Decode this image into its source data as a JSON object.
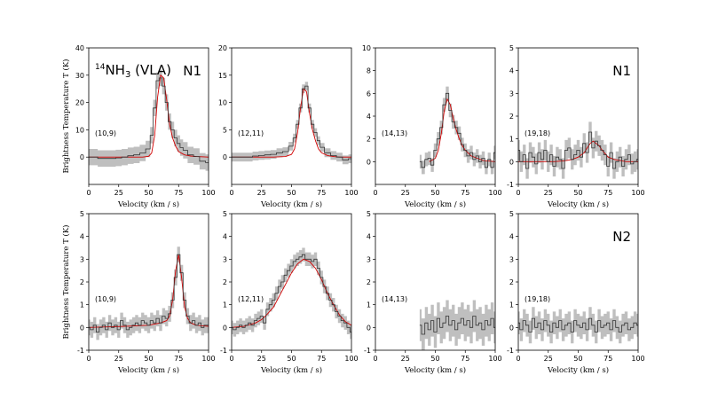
{
  "figure": {
    "title": "NH3 (VLA)",
    "title_prefix": "14",
    "title_species": "NH",
    "title_sub": "3",
    "title_suffix": " (VLA)"
  },
  "chart_data": [
    {
      "type": "line",
      "row": "N1",
      "panel": "(10,9)",
      "region_label": "N1",
      "title_species_label": true,
      "xlabel": "Velocity (km / s)",
      "ylabel": "Brightness Temperature T (K)",
      "xlim": [
        0,
        100
      ],
      "ylim": [
        -10,
        40
      ],
      "xticks": [
        0,
        25,
        50,
        75,
        100
      ],
      "yticks": [
        0,
        10,
        20,
        30,
        40
      ],
      "observed": {
        "x": [
          0,
          5,
          10,
          15,
          20,
          25,
          30,
          35,
          40,
          45,
          50,
          52.5,
          55,
          57.5,
          60,
          62.5,
          65,
          67.5,
          70,
          72.5,
          75,
          77.5,
          80,
          85,
          90,
          95,
          100
        ],
        "y": [
          0,
          0,
          -0.5,
          -0.5,
          -0.5,
          -0.3,
          0,
          0.5,
          0.8,
          1.5,
          3,
          8,
          18,
          28,
          29,
          26,
          20,
          13,
          10,
          7,
          5,
          3.5,
          2.5,
          0.8,
          0.2,
          -1.5,
          -2
        ],
        "err": 3
      },
      "model": {
        "x": [
          0,
          30,
          45,
          50,
          52.5,
          55,
          57.5,
          60,
          62.5,
          65,
          67.5,
          70,
          72.5,
          75,
          80,
          85,
          90,
          100
        ],
        "y": [
          0,
          0,
          0,
          0.3,
          1.5,
          8,
          22,
          30,
          29,
          21,
          12,
          7,
          4,
          2,
          0.8,
          0.4,
          0.2,
          0
        ]
      }
    },
    {
      "type": "line",
      "row": "N1",
      "panel": "(12,11)",
      "xlabel": "Velocity (km / s)",
      "xlim": [
        0,
        100
      ],
      "ylim": [
        -5,
        20
      ],
      "xticks": [
        0,
        25,
        50,
        75,
        100
      ],
      "yticks": [
        0,
        5,
        10,
        15,
        20
      ],
      "observed": {
        "x": [
          0,
          5,
          10,
          15,
          20,
          25,
          30,
          35,
          40,
          45,
          50,
          52.5,
          55,
          57.5,
          60,
          62.5,
          65,
          67.5,
          70,
          72.5,
          75,
          80,
          85,
          90,
          95,
          100
        ],
        "y": [
          0,
          0,
          0,
          0,
          0.2,
          0.3,
          0.4,
          0.5,
          0.8,
          1,
          2,
          3.5,
          6,
          9,
          12.5,
          13,
          9,
          6,
          4.5,
          3,
          1.8,
          0.8,
          0.3,
          0,
          -0.5,
          -0.3
        ],
        "err": 0.8
      },
      "model": {
        "x": [
          0,
          35,
          45,
          50,
          52.5,
          55,
          57.5,
          60,
          62.5,
          65,
          67.5,
          70,
          72.5,
          75,
          80,
          85,
          90,
          100
        ],
        "y": [
          0,
          0,
          0.1,
          0.5,
          1.5,
          4.5,
          9,
          12.5,
          12,
          8,
          5,
          3,
          1.5,
          0.8,
          0.3,
          0.1,
          0,
          0
        ]
      }
    },
    {
      "type": "line",
      "row": "N1",
      "panel": "(14,13)",
      "xlabel": "Velocity (km / s)",
      "xlim": [
        0,
        100
      ],
      "ylim": [
        -2,
        10
      ],
      "xticks": [
        0,
        25,
        50,
        75,
        100
      ],
      "yticks": [
        0,
        2,
        4,
        6,
        8,
        10
      ],
      "observed": {
        "x": [
          37,
          40,
          42.5,
          45,
          47.5,
          50,
          52.5,
          55,
          57.5,
          60,
          62.5,
          65,
          67.5,
          70,
          72.5,
          75,
          77.5,
          80,
          82.5,
          85,
          87.5,
          90,
          92.5,
          95,
          97.5,
          100
        ],
        "y": [
          0,
          -0.5,
          0.2,
          0.3,
          -0.3,
          1,
          2,
          3,
          5,
          6,
          4.5,
          3.5,
          3,
          2.5,
          1.5,
          1,
          0.5,
          0.8,
          0.2,
          0.5,
          0,
          0.3,
          -0.5,
          0.2,
          -0.5,
          0.8
        ],
        "err": 0.6
      },
      "model": {
        "x": [
          45,
          50,
          52.5,
          55,
          57.5,
          60,
          62.5,
          65,
          67.5,
          70,
          72.5,
          75,
          80,
          85,
          90,
          100
        ],
        "y": [
          0,
          0.3,
          1,
          2.5,
          4.5,
          5.5,
          5,
          3.8,
          2.8,
          2,
          1.4,
          1,
          0.5,
          0.3,
          0.1,
          0
        ]
      }
    },
    {
      "type": "line",
      "row": "N1",
      "panel": "(19,18)",
      "region_label": "N1",
      "xlabel": "Velocity (km / s)",
      "xlim": [
        0,
        100
      ],
      "ylim": [
        -1,
        5
      ],
      "xticks": [
        0,
        25,
        50,
        75,
        100
      ],
      "yticks": [
        -1,
        0,
        1,
        2,
        3,
        4,
        5
      ],
      "observed": {
        "x": [
          0,
          2.5,
          5,
          7.5,
          10,
          12.5,
          15,
          17.5,
          20,
          22.5,
          25,
          27.5,
          30,
          32.5,
          35,
          37.5,
          40,
          42.5,
          45,
          47.5,
          50,
          52.5,
          55,
          57.5,
          60,
          62.5,
          65,
          67.5,
          70,
          72.5,
          75,
          77.5,
          80,
          82.5,
          85,
          87.5,
          90,
          92.5,
          95,
          97.5,
          100
        ],
        "y": [
          0.5,
          0,
          0.3,
          -0.3,
          0.4,
          0.2,
          -0.1,
          0.4,
          0.1,
          0.5,
          0,
          0.3,
          -0.2,
          0.2,
          0.1,
          -0.3,
          0.5,
          0.6,
          0.1,
          0.3,
          0.5,
          0.2,
          0.8,
          0.4,
          1.3,
          0.6,
          0.9,
          0.7,
          0.5,
          0.3,
          -0.2,
          0.4,
          -0.3,
          0,
          0.2,
          -0.2,
          0.1,
          0.3,
          -0.1,
          0,
          0.1
        ],
        "err": 0.45
      },
      "model": {
        "x": [
          0,
          20,
          30,
          40,
          45,
          50,
          55,
          57.5,
          60,
          62.5,
          65,
          67.5,
          70,
          72.5,
          75,
          80,
          85,
          90,
          100
        ],
        "y": [
          0,
          0,
          0,
          0.05,
          0.1,
          0.2,
          0.4,
          0.6,
          0.8,
          0.9,
          0.8,
          0.7,
          0.5,
          0.35,
          0.2,
          0.1,
          0.05,
          0,
          0
        ]
      }
    },
    {
      "type": "line",
      "row": "N2",
      "panel": "(10,9)",
      "ylabel": "Brightness Temperature T (K)",
      "xlabel": "Velocity (km / s)",
      "xlim": [
        0,
        100
      ],
      "ylim": [
        -1,
        5
      ],
      "xticks": [
        0,
        25,
        50,
        75,
        100
      ],
      "yticks": [
        -1,
        0,
        1,
        2,
        3,
        4,
        5
      ],
      "observed": {
        "x": [
          0,
          2.5,
          5,
          7.5,
          10,
          12.5,
          15,
          17.5,
          20,
          22.5,
          25,
          27.5,
          30,
          32.5,
          35,
          37.5,
          40,
          42.5,
          45,
          47.5,
          50,
          52.5,
          55,
          57.5,
          60,
          62.5,
          65,
          67.5,
          70,
          72.5,
          75,
          77.5,
          80,
          82.5,
          85,
          87.5,
          90,
          92.5,
          95,
          97.5,
          100
        ],
        "y": [
          0,
          -0.1,
          0.1,
          -0.2,
          0,
          0.1,
          -0.1,
          0.2,
          0,
          0.1,
          -0.1,
          0.3,
          0.1,
          -0.1,
          0,
          0.1,
          0.2,
          0.1,
          0.3,
          0.2,
          0.1,
          0.3,
          0.2,
          0.4,
          0.2,
          0.5,
          0.4,
          0.6,
          1.2,
          2.2,
          3.2,
          2.4,
          1.2,
          0.5,
          0.2,
          0.3,
          0.1,
          0.2,
          0,
          0.1,
          0.1
        ],
        "err": 0.35
      },
      "model": {
        "x": [
          0,
          30,
          50,
          60,
          65,
          67.5,
          70,
          72.5,
          75,
          77.5,
          80,
          82.5,
          85,
          90,
          100
        ],
        "y": [
          0,
          0.05,
          0.1,
          0.2,
          0.3,
          0.5,
          1.2,
          2.5,
          3.2,
          2.2,
          0.9,
          0.4,
          0.2,
          0.1,
          0.05
        ]
      }
    },
    {
      "type": "line",
      "row": "N2",
      "panel": "(12,11)",
      "xlabel": "Velocity (km / s)",
      "xlim": [
        0,
        100
      ],
      "ylim": [
        -1,
        5
      ],
      "xticks": [
        0,
        25,
        50,
        75,
        100
      ],
      "yticks": [
        -1,
        0,
        1,
        2,
        3,
        4,
        5
      ],
      "observed": {
        "x": [
          0,
          2.5,
          5,
          7.5,
          10,
          12.5,
          15,
          17.5,
          20,
          22.5,
          25,
          27.5,
          30,
          32.5,
          35,
          37.5,
          40,
          42.5,
          45,
          47.5,
          50,
          52.5,
          55,
          57.5,
          60,
          62.5,
          65,
          67.5,
          70,
          72.5,
          75,
          77.5,
          80,
          82.5,
          85,
          87.5,
          90,
          92.5,
          95,
          97.5,
          100
        ],
        "y": [
          0,
          -0.1,
          0,
          0.1,
          0,
          0.1,
          0.2,
          0.1,
          0.3,
          0.4,
          0.5,
          0.2,
          0.8,
          1,
          1.2,
          1.5,
          1.8,
          2,
          2.3,
          2.5,
          2.7,
          2.9,
          3,
          3.1,
          3.2,
          3,
          3,
          2.9,
          3,
          2.6,
          2.2,
          1.8,
          1.5,
          1.2,
          1,
          0.7,
          0.5,
          0.3,
          0.2,
          0,
          -0.2
        ],
        "err": 0.3
      },
      "model": {
        "x": [
          0,
          10,
          20,
          25,
          30,
          35,
          40,
          45,
          50,
          55,
          60,
          65,
          70,
          75,
          80,
          85,
          90,
          95,
          100
        ],
        "y": [
          0,
          0.05,
          0.2,
          0.35,
          0.6,
          0.9,
          1.4,
          1.9,
          2.4,
          2.8,
          3,
          2.9,
          2.6,
          2.1,
          1.5,
          1,
          0.55,
          0.25,
          0.1
        ]
      }
    },
    {
      "type": "line",
      "row": "N2",
      "panel": "(14,13)",
      "xlabel": "Velocity (km / s)",
      "xlim": [
        0,
        100
      ],
      "ylim": [
        -1,
        5
      ],
      "xticks": [
        0,
        25,
        50,
        75,
        100
      ],
      "yticks": [
        -1,
        0,
        1,
        2,
        3,
        4,
        5
      ],
      "observed": {
        "x": [
          37,
          40,
          42.5,
          45,
          47.5,
          50,
          52.5,
          55,
          57.5,
          60,
          62.5,
          65,
          67.5,
          70,
          72.5,
          75,
          77.5,
          80,
          82.5,
          85,
          87.5,
          90,
          92.5,
          95,
          97.5,
          100
        ],
        "y": [
          0.1,
          -0.3,
          0.2,
          -0.1,
          0.3,
          -0.2,
          0.4,
          0,
          0.2,
          0.5,
          0.1,
          0.3,
          -0.1,
          0.2,
          0.4,
          0.1,
          0.3,
          0,
          0.5,
          0.1,
          0.2,
          -0.1,
          0.3,
          0.1,
          0.4,
          0
        ],
        "err": 0.7
      },
      "model": null
    },
    {
      "type": "line",
      "row": "N2",
      "panel": "(19,18)",
      "region_label": "N2",
      "xlabel": "Velocity (km / s)",
      "xlim": [
        0,
        100
      ],
      "ylim": [
        -1,
        5
      ],
      "xticks": [
        0,
        25,
        50,
        75,
        100
      ],
      "yticks": [
        -1,
        0,
        1,
        2,
        3,
        4,
        5
      ],
      "observed": {
        "x": [
          0,
          2.5,
          5,
          7.5,
          10,
          12.5,
          15,
          17.5,
          20,
          22.5,
          25,
          27.5,
          30,
          32.5,
          35,
          37.5,
          40,
          42.5,
          45,
          47.5,
          50,
          52.5,
          55,
          57.5,
          60,
          62.5,
          65,
          67.5,
          70,
          72.5,
          75,
          77.5,
          80,
          82.5,
          85,
          87.5,
          90,
          92.5,
          95,
          97.5,
          100
        ],
        "y": [
          0.2,
          -0.1,
          0.3,
          0.1,
          -0.2,
          0.4,
          0,
          0.2,
          -0.1,
          0.3,
          0.1,
          -0.2,
          0.2,
          0,
          0.3,
          -0.1,
          0.1,
          0.2,
          -0.2,
          0.3,
          0.1,
          0,
          0.2,
          -0.1,
          0.4,
          0.1,
          -0.2,
          0.3,
          0,
          0.1,
          0.2,
          -0.1,
          0.3,
          0,
          -0.2,
          0.1,
          0.2,
          -0.1,
          0,
          0.2,
          0.1
        ],
        "err": 0.5
      },
      "model": null
    }
  ],
  "colors": {
    "observed_line": "#333333",
    "error_band": "#bfbfbf",
    "model_line": "#d10000"
  }
}
